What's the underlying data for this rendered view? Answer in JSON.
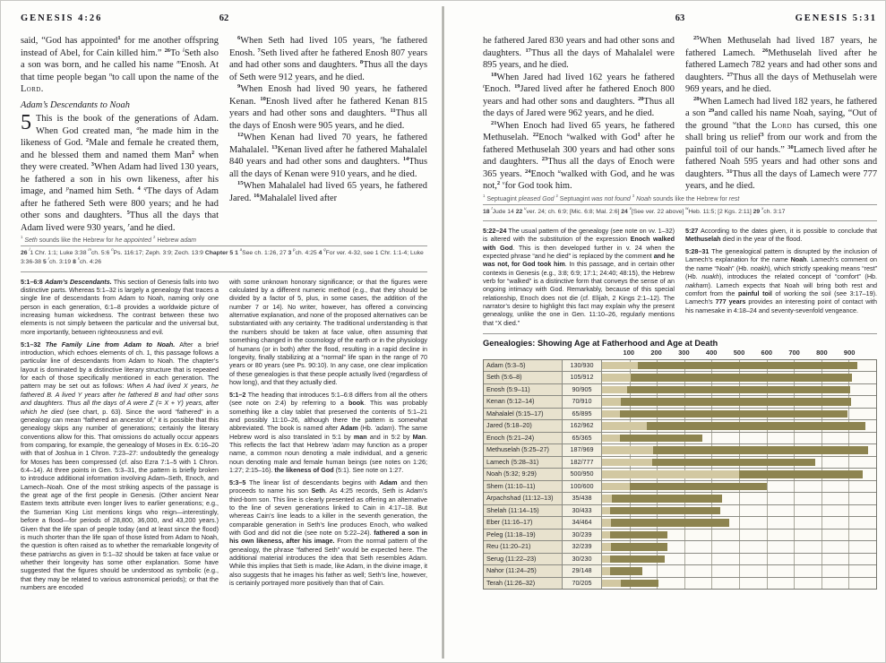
{
  "left_page": {
    "header_title": "GENESIS 4:26",
    "page_number": "62",
    "verse_col1": {
      "p1": "said, “God has appointed^1^ for me another offspring instead of Abel, for Cain killed him.” ^26^To `l`Seth also a son was born, and he called his name `m`Enosh. At that time people began `n`to call upon the name of the ~Lord~.",
      "heading": "Adam’s Descendants to Noah",
      "chapter_num": "5",
      "chapter_text": "This is the book of the generations of Adam. When God created man, `a`he made him in the likeness of God. ^2^Male and female he created them, and he blessed them and named them Man^2^ when they were created. ^3^When Adam had lived 130 years, he fathered a son in his own likeness, after his image, and `p`named him Seth. ^4^ `q`The days of Adam after he fathered Seth were 800 years; and he had other sons and daughters. ^5^Thus all the days that Adam lived were 930 years, `r`and he died."
    },
    "verse_col2": {
      "p1": "^6^When Seth had lived 105 years, `s`he fathered Enosh. ^7^Seth lived after he fathered Enosh 807 years and had other sons and daughters. ^8^Thus all the days of Seth were 912 years, and he died.",
      "p2": "^9^When Enosh had lived 90 years, he fathered Kenan. ^10^Enosh lived after he fathered Kenan 815 years and had other sons and daughters. ^11^Thus all the days of Enosh were 905 years, and he died.",
      "p3": "^12^When Kenan had lived 70 years, he fathered Mahalalel. ^13^Kenan lived after he fathered Mahalalel 840 years and had other sons and daughters. ^14^Thus all the days of Kenan were 910 years, and he died.",
      "p4": "^15^When Mahalalel had lived 65 years, he fathered Jared. ^16^Mahalalel lived after"
    },
    "footnote": "^1^ *Seth* sounds like the Hebrew for *he appointed* ^2^ Hebrew *adam*",
    "crossrefs": "**26** `l`1 Chr. 1:1; Luke 3:38 `m`ch. 5:6 `n`Ps. 116:17; Zeph. 3:9; Zech. 13:9 **Chapter 5** **1** `a`See ch. 1:26, 27 **3** `p`ch. 4:25 **4** `q`For ver. 4-32, see 1 Chr. 1:1-4; Luke 3:36-38 **5** `r`ch. 3:19 **8** `s`ch. 4:26",
    "commentary_col1": [
      "**5:1–6:8** %Adam’s Descendants.% This section of Genesis falls into two distinctive parts. Whereas 5:1–32 is largely a genealogy that traces a single line of descendants from Adam to Noah, naming only one person in each generation, 6:1–8 provides a worldwide picture of increasing human wickedness. The contrast between these two elements is not simply between the particular and the universal but, more importantly, between righteousness and evil.",
      "**5:1–32** %The Family Line from Adam to Noah.% After a brief introduction, which echoes elements of ch. 1, this passage follows a particular line of descendants from Adam to Noah. The chapter’s layout is dominated by a distinctive literary structure that is repeated for each of those specifically mentioned in each generation. The pattern may be set out as follows: *When A had lived X years, he fathered B. A lived Y years after he fathered B and had other sons and daughters. Thus all the days of A were Z (= X + Y) years, after which he died* (see chart, p. 63). Since the word “fathered” in a genealogy can mean “fathered an ancestor of,” it is possible that this genealogy skips any number of generations; certainly the literary conventions allow for this. That omissions do actually occur appears from comparing, for example, the genealogy of Moses in Ex. 6:16–20 with that of Joshua in 1 Chron. 7:23–27: undoubtedly the genealogy for Moses has been compressed (cf. also Ezra 7:1–5 with 1 Chron. 6:4–14). At three points in Gen. 5:3–31, the pattern is briefly broken to introduce additional information involving Adam–Seth, Enoch, and Lamech–Noah. One of the most striking aspects of the passage is the great age of the first people in Genesis. (Other ancient Near Eastern texts attribute even longer lives to earlier generations; e.g., the Sumerian King List mentions kings who reign—interestingly, before a flood—for periods of 28,800, 36,000, and 43,200 years.) Given that the life span of people today (and at least since the flood) is much shorter than the life span of those listed from Adam to Noah, the question is often raised as to whether the remarkable longevity of these patriarchs as given in 5:1–32 should be taken at face value or whether their longevity has some other explanation. Some have suggested that the figures should be understood as symbolic (e.g., that they may be related to various astronomical periods); or that the numbers are encoded"
    ],
    "commentary_col2": [
      "with some unknown honorary significance; or that the figures were calculated by a different numeric method (e.g., that they should be divided by a factor of 5, plus, in some cases, the addition of the number 7 or 14). No writer, however, has offered a convincing alternative explanation, and none of the proposed alternatives can be substantiated with any certainty. The traditional understanding is that the numbers should be taken at face value, often assuming that something changed in the cosmology of the earth or in the physiology of humans (or in both) after the flood, resulting in a rapid decline in longevity, finally stabilizing at a “normal” life span in the range of 70 years or 80 years (see Ps. 90:10). In any case, one clear implication of these genealogies is that these people actually lived (regardless of how long), and that they actually died.",
      "**5:1–2** The heading that introduces 5:1–6:8 differs from all the others (see note on 2:4) by referring to a **book**. This was probably something like a clay tablet that preserved the contents of 5:1–21 and possibly 11:10–26, although there the pattern is somewhat abbreviated. The book is named after **Adam** (Hb. *’adam*). The same Hebrew word is also translated in 5:1 by **man** and in 5:2 by **Man**. This reflects the fact that Hebrew *’adam* may function as a proper name, a common noun denoting a male individual, and a generic noun denoting male and female human beings (see notes on 1:26; 1:27; 2:15–16). **the likeness of God** (5:1). See note on 1:27.",
      "**5:3–5** The linear list of descendants begins with **Adam** and then proceeds to name his son **Seth**. As 4:25 records, Seth is Adam’s third-born son. This line is clearly presented as offering an alternative to the line of seven generations linked to Cain in 4:17–18. But whereas Cain’s line leads to a killer in the seventh generation, the comparable generation in Seth’s line produces Enoch, who walked with God and did not die (see note on 5:22–24). **fathered a son in his own likeness, after his image.** From the normal pattern of the genealogy, the phrase “fathered Seth” would be expected here. The additional material introduces the idea that Seth resembles Adam. While this implies that Seth is made, like Adam, in the divine image, it also suggests that he images his father as well; Seth’s line, however, is certainly portrayed more positively than that of Cain."
    ]
  },
  "right_page": {
    "header_title": "GENESIS 5:31",
    "page_number": "63",
    "verse_col1": {
      "p1": "he fathered Jared 830 years and had other sons and daughters. ^17^Thus all the days of Mahalalel were 895 years, and he died.",
      "p2": "^18^When Jared had lived 162 years he fathered `t`Enoch. ^19^Jared lived after he fathered Enoch 800 years and had other sons and daughters. ^20^Thus all the days of Jared were 962 years, and he died.",
      "p3": "^21^When Enoch had lived 65 years, he fathered Methuselah. ^22^Enoch `u`walked with God^1^ after he fathered Methuselah 300 years and had other sons and daughters. ^23^Thus all the days of Enoch were 365 years. ^24^Enoch `u`walked with God, and he was not,^2^ `v`for God took him."
    },
    "verse_col2": {
      "p1": "^25^When Methuselah had lived 187 years, he fathered Lamech. ^26^Methuselah lived after he fathered Lamech 782 years and had other sons and daughters. ^27^Thus all the days of Methuselah were 969 years, and he died.",
      "p2": "^28^When Lamech had lived 182 years, he fathered a son ^29^and called his name Noah, saying, “Out of the ground `w`that the ~Lord~ has cursed, this one shall bring us relief^3^ from our work and from the painful toil of our hands.” ^30^Lamech lived after he fathered Noah 595 years and had other sons and daughters. ^31^Thus all the days of Lamech were 777 years, and he died."
    },
    "footnote": "^1^ Septuagint *pleased God* ^2^ Septuagint *was not found* ^3^ *Noah* sounds like the Hebrew for *rest*",
    "crossrefs": "**18** `t`Jude 14 **22** `u`ver. 24; ch. 6:9; [Mic. 6:8; Mal. 2:6] **24** `v`[See ver. 22 above] `w`Heb. 11:5; [2 Kgs. 2:11] **29** `x`ch. 3:17",
    "commentary_col1": [
      "**5:22–24** The usual pattern of the genealogy (see note on vv. 1–32) is altered with the substitution of the expression **Enoch walked with God**. This is then developed further in v. 24 when the expected phrase “and he died” is replaced by the comment **and he was not, for God took him**. In this passage, and in certain other contexts in Genesis (e.g., 3:8; 6:9; 17:1; 24:40; 48:15), the Hebrew verb for “walked” is a distinctive form that conveys the sense of an ongoing intimacy with God. Remarkably, because of this special relationship, Enoch does not die (cf. Elijah, 2 Kings 2:1–12). The narrator’s desire to highlight this fact may explain why the present genealogy, unlike the one in Gen. 11:10–26, regularly mentions that “X died.”"
    ],
    "commentary_col2": [
      "**5:27** According to the dates given, it is possible to conclude that **Methuselah** died in the year of the flood.",
      "**5:28–31** The genealogical pattern is disrupted by the inclusion of Lamech’s explanation for the name **Noah**. Lamech’s comment on the name “Noah” (Hb. *noakh*), which strictly speaking means “rest” (Hb. *nuakh*), introduces the related concept of “comfort” (Hb. *nakham*). Lamech expects that Noah will bring both rest and comfort from the **painful toil** of working the soil (see 3:17–19). Lamech’s **777 years** provides an interesting point of contact with his namesake in 4:18–24 and seventy-sevenfold vengeance."
    ]
  },
  "chart_data": {
    "type": "bar",
    "title": "Genealogies: Showing Age at Fatherhood and Age at Death",
    "xlim": [
      0,
      1000
    ],
    "ticks": [
      100,
      200,
      300,
      400,
      500,
      600,
      700,
      800,
      900
    ],
    "grid": true,
    "legend": "none",
    "series": [
      {
        "name": "Age at Fatherhood",
        "color": "#d2c8a2"
      },
      {
        "name": "Age at Death",
        "color": "#8d8450"
      }
    ],
    "rows": [
      {
        "name": "Adam (5:3–5)",
        "label": "130/930",
        "fatherhood": 130,
        "death": 930
      },
      {
        "name": "Seth (5:6–8)",
        "label": "105/912",
        "fatherhood": 105,
        "death": 912
      },
      {
        "name": "Enosh (5:9–11)",
        "label": "90/905",
        "fatherhood": 90,
        "death": 905
      },
      {
        "name": "Kenan (5:12–14)",
        "label": "70/910",
        "fatherhood": 70,
        "death": 910
      },
      {
        "name": "Mahalalel (5:15–17)",
        "label": "65/895",
        "fatherhood": 65,
        "death": 895
      },
      {
        "name": "Jared (5:18–20)",
        "label": "162/962",
        "fatherhood": 162,
        "death": 962
      },
      {
        "name": "Enoch (5:21–24)",
        "label": "65/365",
        "fatherhood": 65,
        "death": 365
      },
      {
        "name": "Methuselah (5:25–27)",
        "label": "187/969",
        "fatherhood": 187,
        "death": 969
      },
      {
        "name": "Lamech (5:28–31)",
        "label": "182/777",
        "fatherhood": 182,
        "death": 777
      },
      {
        "name": "Noah (5:32; 9:29)",
        "label": "500/950",
        "fatherhood": 500,
        "death": 950
      },
      {
        "name": "Shem (11:10–11)",
        "label": "100/600",
        "fatherhood": 100,
        "death": 600
      },
      {
        "name": "Arpachshad (11:12–13)",
        "label": "35/438",
        "fatherhood": 35,
        "death": 438
      },
      {
        "name": "Shelah (11:14–15)",
        "label": "30/433",
        "fatherhood": 30,
        "death": 433
      },
      {
        "name": "Eber (11:16–17)",
        "label": "34/464",
        "fatherhood": 34,
        "death": 464
      },
      {
        "name": "Peleg (11:18–19)",
        "label": "30/239",
        "fatherhood": 30,
        "death": 239
      },
      {
        "name": "Reu (11:20–21)",
        "label": "32/239",
        "fatherhood": 32,
        "death": 239
      },
      {
        "name": "Serug (11:22–23)",
        "label": "30/230",
        "fatherhood": 30,
        "death": 230
      },
      {
        "name": "Nahor (11:24–25)",
        "label": "29/148",
        "fatherhood": 29,
        "death": 148
      },
      {
        "name": "Terah (11:26–32)",
        "label": "70/205",
        "fatherhood": 70,
        "death": 205
      }
    ],
    "colors": {
      "fatherhood": "#d2c8a2",
      "death": "#8d8450",
      "grid": "#aaa99c",
      "row_label_bg": "#e8e2ce",
      "value_bg": "#f3f0e2"
    }
  }
}
